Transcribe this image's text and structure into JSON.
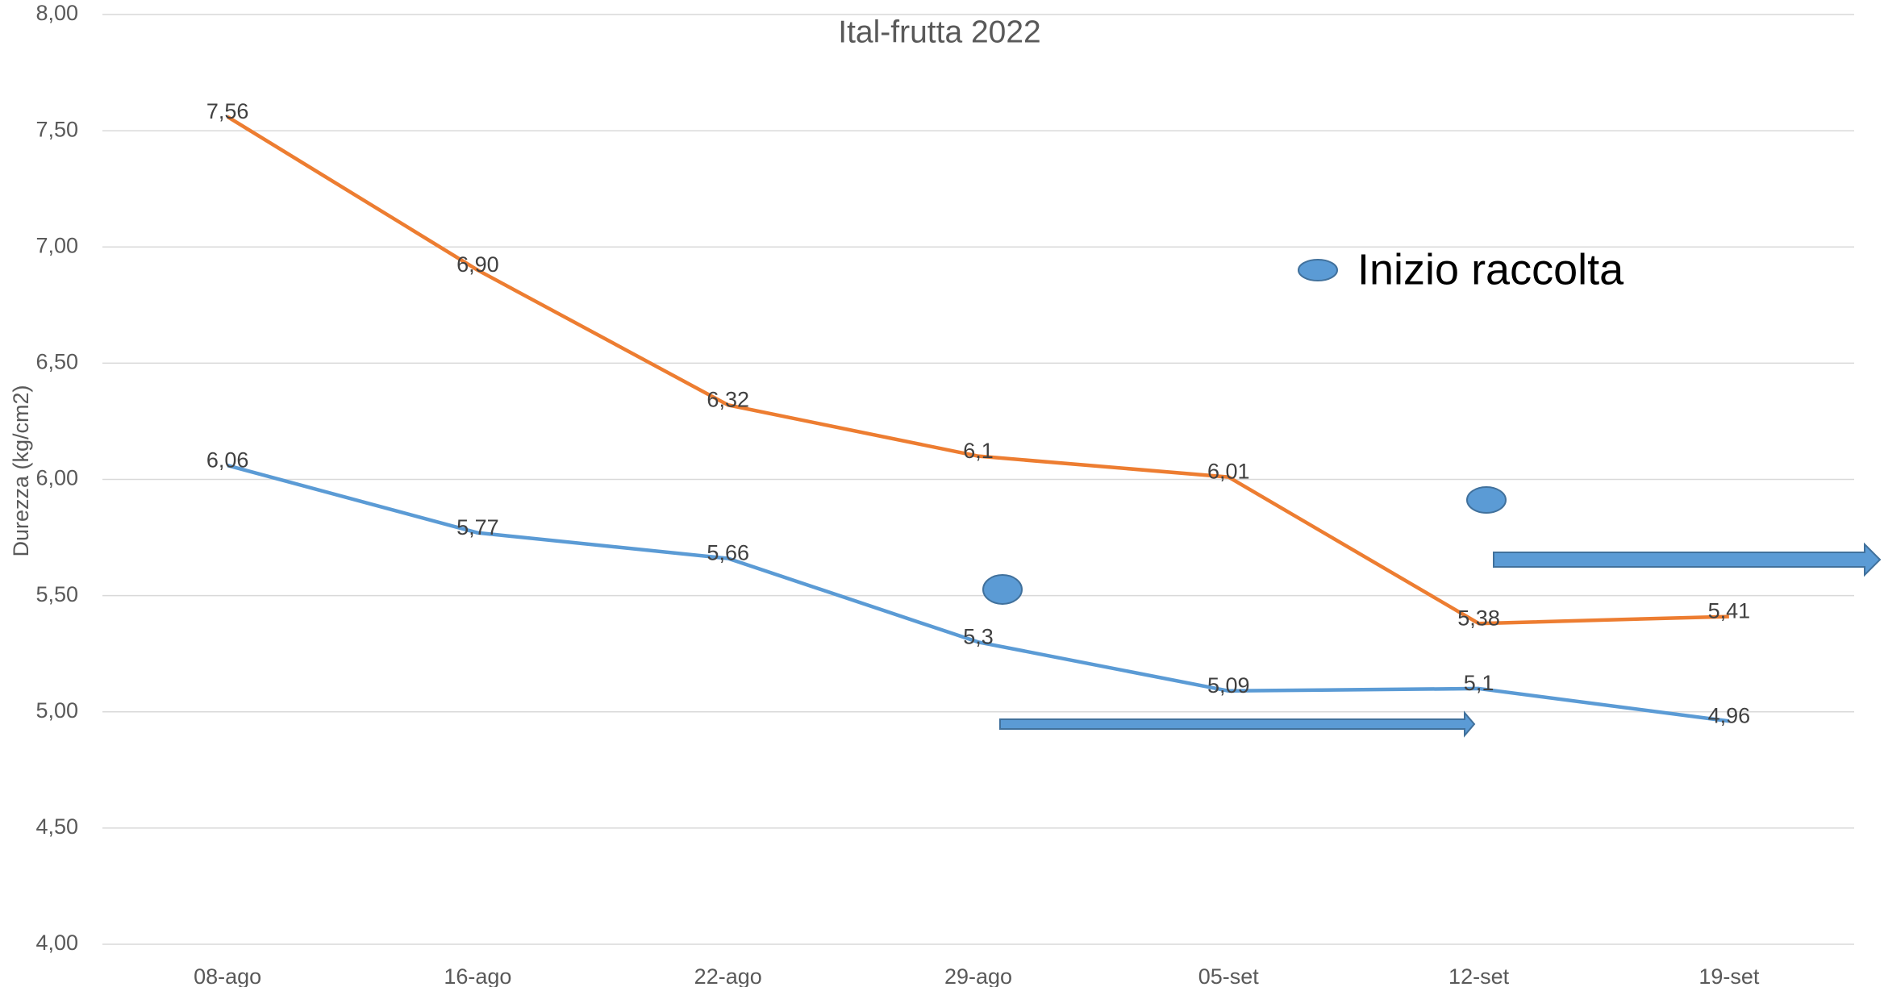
{
  "chart_data": {
    "type": "line",
    "title": "Ital-frutta 2022",
    "y_label": "Durezza (kg/cm2)",
    "annotation": "Inizio raccolta",
    "categories": [
      "08-ago",
      "16-ago",
      "22-ago",
      "29-ago",
      "05-set",
      "12-set",
      "19-set"
    ],
    "series": [
      {
        "color": "#ED7D31",
        "values": [
          7.56,
          6.9,
          6.32,
          6.1,
          6.01,
          5.38,
          5.41
        ],
        "value_labels": [
          "7,56",
          "6,90",
          "6,32",
          "6,1",
          "6,01",
          "5,38",
          "5,41"
        ]
      },
      {
        "color": "#5B9BD5",
        "values": [
          6.06,
          5.77,
          5.66,
          5.3,
          5.09,
          5.1,
          4.96
        ],
        "value_labels": [
          "6,06",
          "5,77",
          "5,66",
          "5,3",
          "5,09",
          "5,1",
          "4,96"
        ]
      }
    ],
    "ylim": [
      4,
      8
    ],
    "yticks": [
      {
        "value": 4,
        "label": "4,00"
      },
      {
        "value": 4.5,
        "label": "4,50"
      },
      {
        "value": 5,
        "label": "5,00"
      },
      {
        "value": 5.5,
        "label": "5,50"
      },
      {
        "value": 6,
        "label": "6,00"
      },
      {
        "value": 6.5,
        "label": "6,50"
      },
      {
        "value": 7,
        "label": "7,00"
      },
      {
        "value": 7.5,
        "label": "7,50"
      },
      {
        "value": 8,
        "label": "8,00"
      }
    ],
    "grid": true
  }
}
